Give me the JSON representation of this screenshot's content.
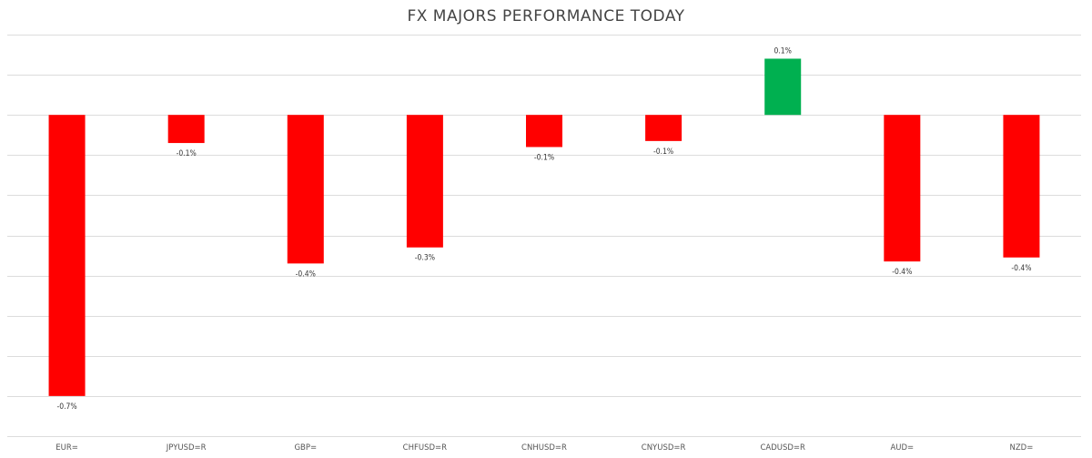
{
  "chart_data": {
    "type": "bar",
    "title": "FX MAJORS PERFORMANCE TODAY",
    "xlabel": "",
    "ylabel": "",
    "categories": [
      "EUR=",
      "JPYUSD=R",
      "GBP=",
      "CHFUSD=R",
      "CNHUSD=R",
      "CNYUSD=R",
      "CADUSD=R",
      "AUD=",
      "NZD="
    ],
    "values": [
      -0.7,
      -0.07,
      -0.37,
      -0.33,
      -0.08,
      -0.065,
      0.14,
      -0.365,
      -0.355
    ],
    "data_labels": [
      "-0.7%",
      "-0.1%",
      "-0.4%",
      "-0.3%",
      "-0.1%",
      "-0.1%",
      "0.1%",
      "-0.4%",
      "-0.4%"
    ],
    "ylim": [
      -0.8,
      0.2
    ],
    "grid": true,
    "legend": "none",
    "colors": {
      "positive": "#00b050",
      "negative": "#ff0000",
      "grid": "#dcdcdc"
    }
  }
}
